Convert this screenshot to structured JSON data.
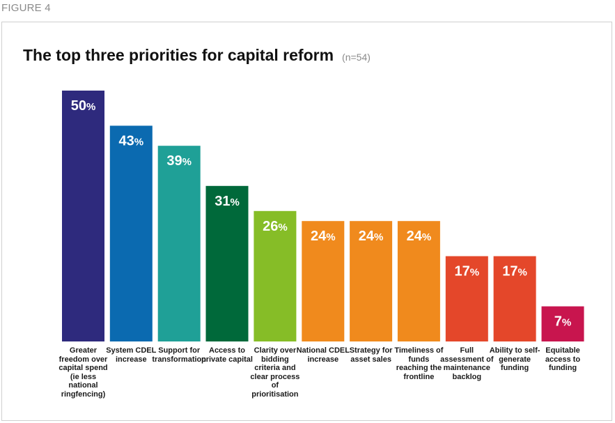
{
  "figure_label": "FIGURE 4",
  "chart_data": {
    "type": "bar",
    "title": "The top three priorities for capital reform",
    "subtitle": "(n=54)",
    "unit": "%",
    "ylim": [
      0,
      50
    ],
    "grid": false,
    "categories": [
      "Greater freedom over capital spend (ie less national ringfencing)",
      "System CDEL increase",
      "Support for transformation",
      "Access to private capital",
      "Clarity over bidding criteria and clear process of prioritisation",
      "National CDEL increase",
      "Strategy for asset sales",
      "Timeliness of funds reaching the frontline",
      "Full assessment of maintenance backlog",
      "Ability to self-generate funding",
      "Equitable access to funding"
    ],
    "values": [
      50,
      43,
      39,
      31,
      26,
      24,
      24,
      24,
      17,
      17,
      7
    ],
    "colors": [
      "#2e2a7d",
      "#0b6ab0",
      "#1fa097",
      "#00693a",
      "#86bd27",
      "#f08a1d",
      "#f08a1d",
      "#f08a1d",
      "#e4472a",
      "#e4472a",
      "#c8154e"
    ]
  }
}
